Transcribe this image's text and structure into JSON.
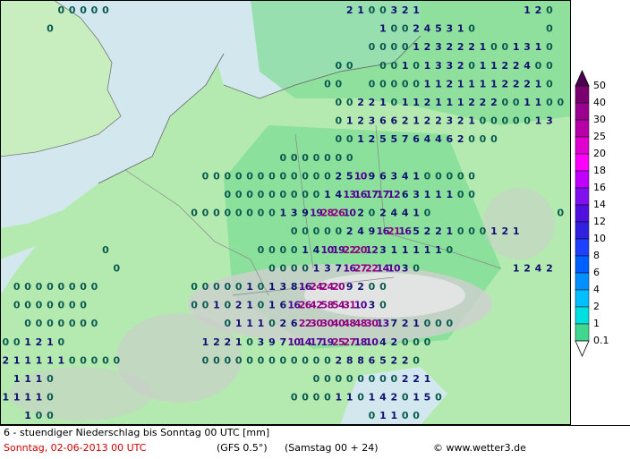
{
  "map": {
    "rows": [
      [
        null,
        null,
        null,
        null,
        null,
        0,
        0,
        0,
        0,
        0,
        null,
        null,
        null,
        null,
        null,
        null,
        null,
        null,
        null,
        null,
        null,
        null,
        null,
        null,
        null,
        null,
        null,
        null,
        null,
        null,
        null,
        2,
        1,
        0,
        0,
        3,
        2,
        1,
        null,
        null,
        null,
        null,
        null,
        null,
        null,
        null,
        null,
        1,
        2,
        0
      ],
      [
        null,
        null,
        null,
        null,
        0,
        null,
        null,
        null,
        null,
        null,
        null,
        null,
        null,
        null,
        null,
        null,
        null,
        null,
        null,
        null,
        null,
        null,
        null,
        null,
        null,
        null,
        null,
        null,
        null,
        null,
        null,
        null,
        null,
        null,
        1,
        0,
        0,
        2,
        4,
        5,
        3,
        1,
        0,
        null,
        null,
        null,
        null,
        null,
        null,
        0
      ],
      [
        null,
        null,
        null,
        null,
        null,
        null,
        null,
        null,
        null,
        null,
        null,
        null,
        null,
        null,
        null,
        null,
        null,
        null,
        null,
        null,
        null,
        null,
        null,
        null,
        null,
        null,
        null,
        null,
        null,
        null,
        null,
        null,
        null,
        0,
        0,
        0,
        0,
        1,
        2,
        3,
        2,
        2,
        2,
        1,
        0,
        0,
        1,
        3,
        1,
        0
      ],
      [
        null,
        null,
        null,
        null,
        null,
        null,
        null,
        null,
        null,
        null,
        null,
        null,
        null,
        null,
        null,
        null,
        null,
        null,
        null,
        null,
        null,
        null,
        null,
        null,
        null,
        null,
        null,
        null,
        null,
        null,
        0,
        0,
        null,
        null,
        0,
        0,
        1,
        0,
        1,
        3,
        3,
        2,
        0,
        1,
        1,
        2,
        2,
        4,
        0,
        0
      ],
      [
        null,
        null,
        null,
        null,
        null,
        null,
        null,
        null,
        null,
        null,
        null,
        null,
        null,
        null,
        null,
        null,
        null,
        null,
        null,
        null,
        null,
        null,
        null,
        null,
        null,
        null,
        null,
        null,
        null,
        0,
        0,
        null,
        null,
        0,
        0,
        0,
        0,
        0,
        1,
        1,
        2,
        1,
        1,
        1,
        1,
        2,
        2,
        2,
        1,
        0
      ],
      [
        null,
        null,
        null,
        null,
        null,
        null,
        null,
        null,
        null,
        null,
        null,
        null,
        null,
        null,
        null,
        null,
        null,
        null,
        null,
        null,
        null,
        null,
        null,
        null,
        null,
        null,
        null,
        null,
        null,
        null,
        0,
        0,
        2,
        2,
        1,
        0,
        1,
        1,
        2,
        1,
        1,
        1,
        2,
        2,
        2,
        0,
        0,
        1,
        1,
        0,
        0
      ],
      [
        null,
        null,
        null,
        null,
        null,
        null,
        null,
        null,
        null,
        null,
        null,
        null,
        null,
        null,
        null,
        null,
        null,
        null,
        null,
        null,
        null,
        null,
        null,
        null,
        null,
        null,
        null,
        null,
        null,
        null,
        0,
        1,
        2,
        3,
        6,
        6,
        2,
        1,
        2,
        2,
        3,
        2,
        1,
        0,
        0,
        0,
        0,
        0,
        1,
        3
      ],
      [
        null,
        null,
        null,
        null,
        null,
        null,
        null,
        null,
        null,
        null,
        null,
        null,
        null,
        null,
        null,
        null,
        null,
        null,
        null,
        null,
        null,
        null,
        null,
        null,
        null,
        null,
        null,
        null,
        null,
        null,
        0,
        0,
        1,
        2,
        5,
        5,
        7,
        6,
        4,
        4,
        6,
        2,
        0,
        0,
        0
      ],
      [
        null,
        null,
        null,
        null,
        null,
        null,
        null,
        null,
        null,
        null,
        null,
        null,
        null,
        null,
        null,
        null,
        null,
        null,
        null,
        null,
        null,
        null,
        null,
        null,
        null,
        0,
        0,
        0,
        0,
        0,
        0,
        0
      ],
      [
        null,
        null,
        null,
        null,
        null,
        null,
        null,
        null,
        null,
        null,
        null,
        null,
        null,
        null,
        null,
        null,
        null,
        null,
        0,
        0,
        0,
        0,
        0,
        0,
        0,
        0,
        0,
        0,
        0,
        0,
        2,
        5,
        10,
        9,
        6,
        3,
        4,
        1,
        0,
        0,
        0,
        0,
        0
      ],
      [
        null,
        null,
        null,
        null,
        null,
        null,
        null,
        null,
        null,
        null,
        null,
        null,
        null,
        null,
        null,
        null,
        null,
        null,
        null,
        null,
        0,
        0,
        0,
        0,
        0,
        0,
        0,
        0,
        0,
        1,
        4,
        13,
        16,
        17,
        17,
        12,
        6,
        3,
        1,
        1,
        1,
        0,
        0
      ],
      [
        null,
        null,
        null,
        null,
        null,
        null,
        null,
        null,
        null,
        null,
        null,
        null,
        null,
        null,
        null,
        null,
        null,
        0,
        0,
        0,
        0,
        0,
        0,
        0,
        0,
        1,
        3,
        9,
        19,
        28,
        26,
        10,
        2,
        0,
        2,
        4,
        4,
        1,
        0,
        null,
        null,
        null,
        null,
        null,
        null,
        null,
        null,
        null,
        null,
        null,
        0
      ],
      [
        null,
        null,
        null,
        null,
        null,
        null,
        null,
        null,
        null,
        null,
        null,
        null,
        null,
        null,
        null,
        null,
        null,
        null,
        null,
        null,
        null,
        null,
        null,
        null,
        null,
        null,
        0,
        0,
        0,
        0,
        0,
        2,
        4,
        9,
        16,
        21,
        16,
        5,
        2,
        2,
        1,
        0,
        0,
        0,
        1,
        2,
        1
      ],
      [
        null,
        null,
        null,
        null,
        null,
        null,
        null,
        null,
        null,
        0,
        null,
        null,
        null,
        null,
        null,
        null,
        null,
        null,
        null,
        null,
        null,
        null,
        null,
        0,
        0,
        0,
        0,
        1,
        4,
        10,
        19,
        22,
        20,
        12,
        3,
        1,
        1,
        1,
        1,
        1,
        0
      ],
      [
        null,
        null,
        null,
        null,
        null,
        null,
        null,
        null,
        null,
        null,
        0,
        null,
        null,
        null,
        null,
        null,
        null,
        null,
        null,
        null,
        null,
        null,
        null,
        null,
        0,
        0,
        0,
        0,
        1,
        3,
        7,
        16,
        27,
        22,
        14,
        10,
        3,
        0,
        null,
        null,
        null,
        null,
        null,
        null,
        null,
        null,
        1,
        2,
        4,
        2
      ],
      [
        null,
        0,
        0,
        0,
        0,
        0,
        0,
        0,
        0,
        null,
        null,
        null,
        null,
        null,
        null,
        null,
        null,
        0,
        0,
        0,
        0,
        0,
        1,
        0,
        1,
        3,
        8,
        16,
        24,
        24,
        20,
        9,
        2,
        0,
        0
      ],
      [
        null,
        0,
        0,
        0,
        0,
        0,
        0,
        0,
        null,
        null,
        null,
        null,
        null,
        null,
        null,
        null,
        null,
        0,
        0,
        1,
        0,
        2,
        1,
        0,
        1,
        6,
        16,
        26,
        42,
        58,
        54,
        31,
        10,
        3,
        0
      ],
      [
        null,
        null,
        0,
        0,
        0,
        0,
        0,
        0,
        0,
        null,
        null,
        null,
        null,
        null,
        null,
        null,
        null,
        null,
        null,
        null,
        0,
        1,
        1,
        1,
        0,
        2,
        6,
        22,
        30,
        30,
        40,
        48,
        48,
        30,
        13,
        7,
        2,
        1,
        0,
        0,
        0
      ],
      [
        0,
        0,
        1,
        2,
        1,
        0,
        null,
        null,
        null,
        null,
        null,
        null,
        null,
        null,
        null,
        null,
        null,
        null,
        1,
        2,
        2,
        1,
        0,
        3,
        9,
        7,
        10,
        14,
        17,
        19,
        25,
        27,
        18,
        10,
        4,
        2,
        0,
        0,
        0
      ],
      [
        2,
        1,
        1,
        1,
        1,
        1,
        0,
        0,
        0,
        0,
        0,
        null,
        null,
        null,
        null,
        null,
        null,
        null,
        0,
        0,
        0,
        0,
        0,
        0,
        0,
        0,
        0,
        0,
        0,
        0,
        2,
        8,
        8,
        6,
        5,
        2,
        2,
        0
      ],
      [
        null,
        1,
        1,
        1,
        0,
        null,
        null,
        null,
        null,
        null,
        null,
        null,
        null,
        null,
        null,
        null,
        null,
        null,
        null,
        null,
        null,
        null,
        null,
        null,
        null,
        null,
        null,
        null,
        0,
        0,
        0,
        0,
        0,
        0,
        0,
        0,
        2,
        2,
        1
      ],
      [
        1,
        1,
        1,
        1,
        0,
        null,
        null,
        null,
        null,
        null,
        null,
        null,
        null,
        null,
        null,
        null,
        null,
        null,
        null,
        null,
        null,
        null,
        null,
        null,
        null,
        null,
        0,
        0,
        0,
        0,
        1,
        1,
        0,
        1,
        4,
        2,
        0,
        1,
        5,
        0
      ],
      [
        null,
        null,
        1,
        0,
        0,
        null,
        null,
        null,
        null,
        null,
        null,
        null,
        null,
        null,
        null,
        null,
        null,
        null,
        null,
        null,
        null,
        null,
        null,
        null,
        null,
        null,
        null,
        null,
        null,
        null,
        null,
        null,
        null,
        0,
        1,
        1,
        0,
        0
      ]
    ]
  },
  "legend": {
    "levels": [
      50,
      40,
      30,
      25,
      20,
      18,
      16,
      14,
      12,
      10,
      8,
      6,
      4,
      2,
      1,
      0.1
    ],
    "colors": [
      "#500050",
      "#7a0070",
      "#9a0090",
      "#b800a8",
      "#e000d0",
      "#ff00ff",
      "#c000ff",
      "#8010f0",
      "#5010e0",
      "#3020e0",
      "#2040ff",
      "#0060ff",
      "#0090ff",
      "#00c0ff",
      "#00e0e0",
      "#40d890"
    ]
  },
  "footer": {
    "title": "6 - stuendiger Niederschlag bis Sonntag 00 UTC [mm]",
    "date": "Sonntag, 02-06-2013  00 UTC",
    "model": "(GFS 0.5°)",
    "run": "(Samstag 00 + 24)",
    "credit": "© www.wetter3.de"
  }
}
